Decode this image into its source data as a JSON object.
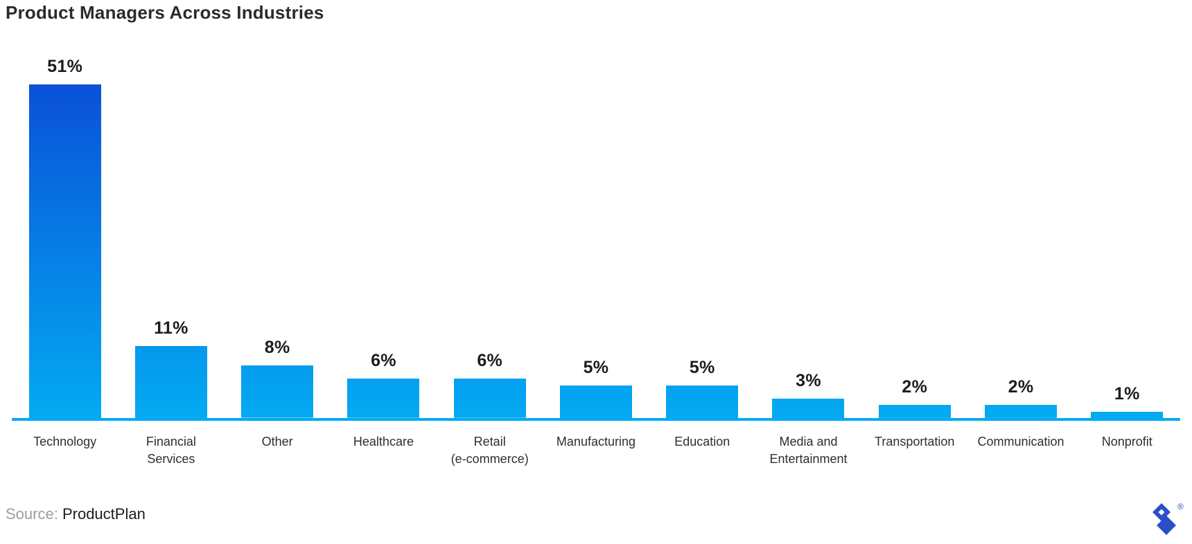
{
  "title": "Product Managers Across Industries",
  "chart_data": {
    "type": "bar",
    "categories": [
      "Technology",
      "Financial\nServices",
      "Other",
      "Healthcare",
      "Retail\n(e-commerce)",
      "Manufacturing",
      "Education",
      "Media and\nEntertainment",
      "Transportation",
      "Communication",
      "Nonprofit"
    ],
    "values": [
      51,
      11,
      8,
      6,
      6,
      5,
      5,
      3,
      2,
      2,
      1
    ],
    "value_labels": [
      "51%",
      "11%",
      "8%",
      "6%",
      "6%",
      "5%",
      "5%",
      "3%",
      "2%",
      "2%",
      "1%"
    ],
    "title": "Product Managers Across Industries",
    "xlabel": "",
    "ylabel": "",
    "ylim": [
      0,
      51
    ],
    "grid": false,
    "legend": null,
    "bar_gradient_top": "#0a51d8",
    "bar_gradient_bottom": "#04aaf2",
    "axis_line_color": "#00abf3",
    "value_label_color": "#1c1c1c",
    "category_label_color": "#2e2e2e"
  },
  "source": {
    "prefix": "Source:",
    "name": "ProductPlan"
  },
  "logo": {
    "name": "toptal-logo",
    "color": "#2b4ec8",
    "registered_mark": "®"
  }
}
